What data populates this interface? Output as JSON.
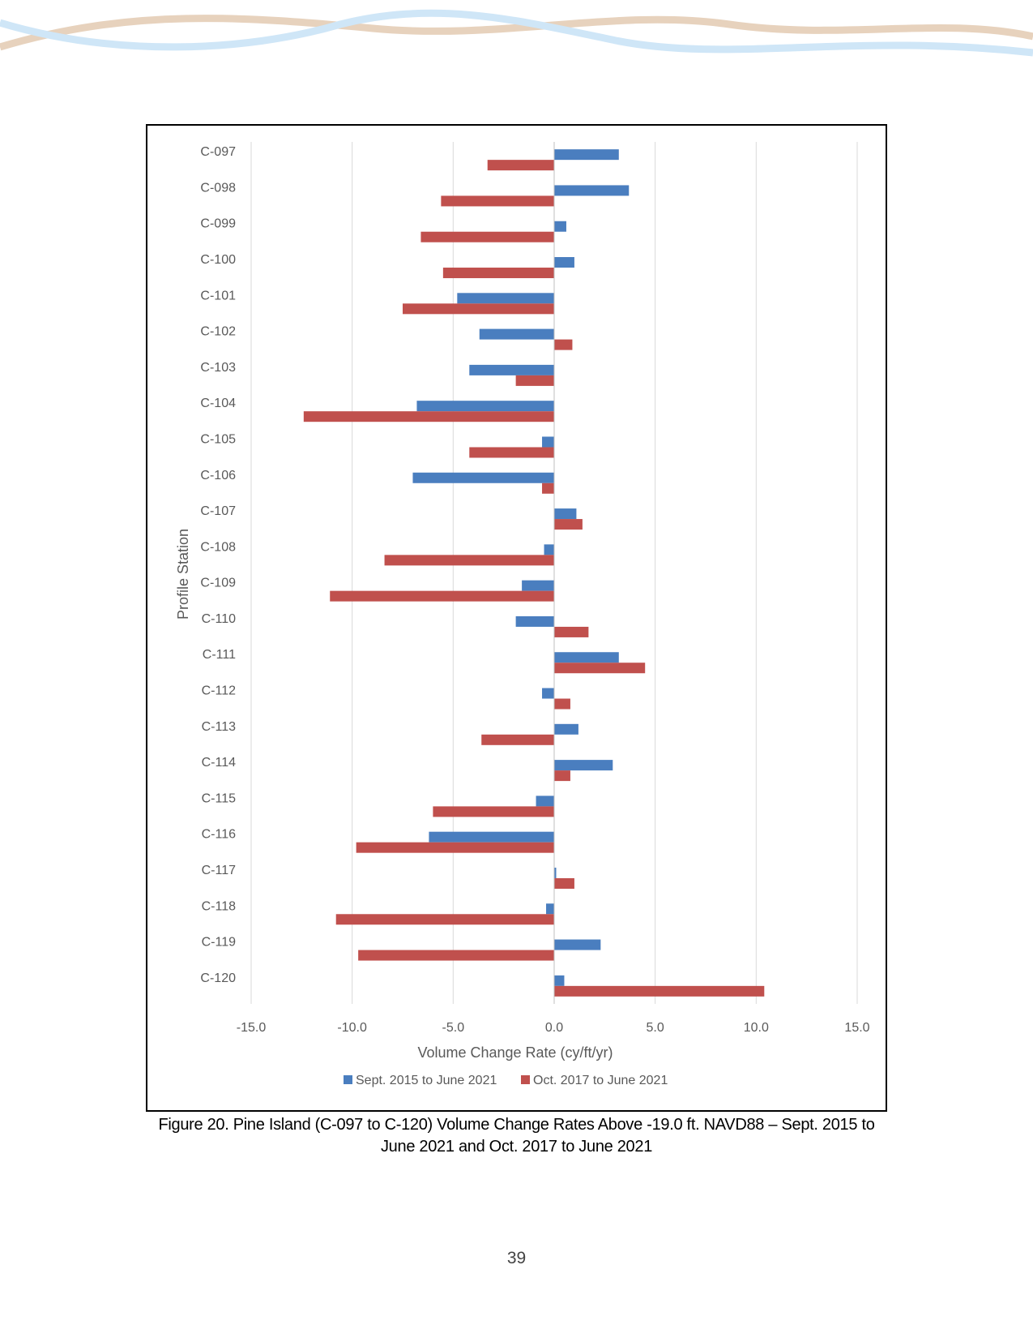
{
  "colors": {
    "series1": "#4a7ebf",
    "series2": "#c0504d",
    "wave_tan": "#e7d2bd",
    "wave_blue": "#cfe6f7",
    "grid": "#d9d9d9"
  },
  "chart_data": {
    "type": "bar",
    "orientation": "horizontal",
    "title": "",
    "xlabel": "Volume Change Rate (cy/ft/yr)",
    "ylabel": "Profile Station",
    "xlim": [
      -15,
      15
    ],
    "x_ticks": [
      "-15.0",
      "-10.0",
      "-5.0",
      "0.0",
      "5.0",
      "10.0",
      "15.0"
    ],
    "grid": "vertical",
    "legend_position": "bottom",
    "categories": [
      "C-097",
      "C-098",
      "C-099",
      "C-100",
      "C-101",
      "C-102",
      "C-103",
      "C-104",
      "C-105",
      "C-106",
      "C-107",
      "C-108",
      "C-109",
      "C-110",
      "C-111",
      "C-112",
      "C-113",
      "C-114",
      "C-115",
      "C-116",
      "C-117",
      "C-118",
      "C-119",
      "C-120"
    ],
    "series": [
      {
        "name": "Sept. 2015 to June 2021",
        "color": "#4a7ebf",
        "values": [
          3.2,
          3.7,
          0.6,
          1.0,
          -4.8,
          -3.7,
          -4.2,
          -6.8,
          -0.6,
          -7.0,
          1.1,
          -0.5,
          -1.6,
          -1.9,
          3.2,
          -0.6,
          1.2,
          2.9,
          -0.9,
          -6.2,
          0.1,
          -0.4,
          2.3,
          0.5
        ]
      },
      {
        "name": "Oct. 2017 to June 2021",
        "color": "#c0504d",
        "values": [
          -3.3,
          -5.6,
          -6.6,
          -5.5,
          -7.5,
          0.9,
          -1.9,
          -12.4,
          -4.2,
          -0.6,
          1.4,
          -8.4,
          -11.1,
          1.7,
          4.5,
          0.8,
          -3.6,
          0.8,
          -6.0,
          -9.8,
          1.0,
          -10.8,
          -9.7,
          10.4
        ]
      }
    ]
  },
  "caption": {
    "line1": "Figure 20.  Pine Island (C-097 to C-120) Volume Change Rates Above -19.0 ft. NAVD88 – Sept. 2015 to",
    "line2": "June 2021 and Oct. 2017 to June 2021"
  },
  "page_number": "39"
}
